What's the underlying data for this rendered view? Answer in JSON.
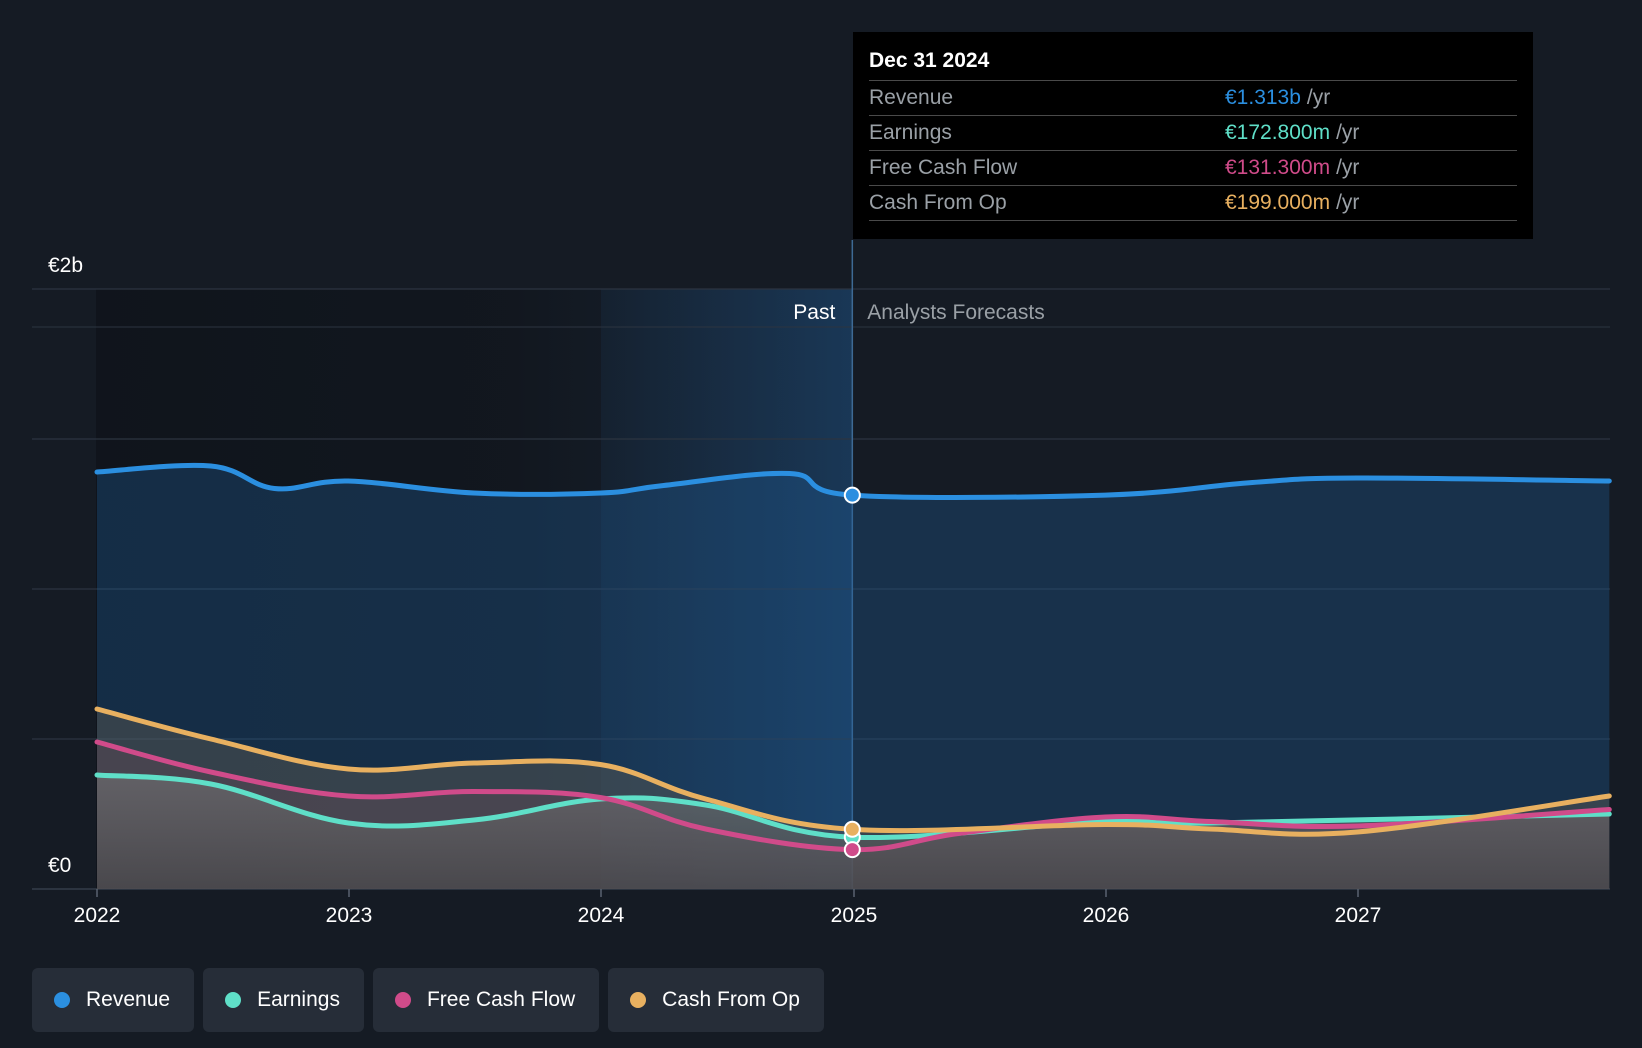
{
  "chart_data": {
    "type": "area",
    "y_tick_labels": [
      "€2b",
      "€0"
    ],
    "ylim": [
      0,
      2000000000
    ],
    "x_tick_labels": [
      "2022",
      "2023",
      "2024",
      "2025",
      "2026",
      "2027"
    ],
    "past_label": "Past",
    "forecast_label": "Analysts Forecasts",
    "divider_date": "2024-12-31",
    "grid": true,
    "series": [
      {
        "name": "Revenue",
        "color": "#2b8fe0",
        "points": [
          [
            "2022-01-01",
            1390000000
          ],
          [
            "2022-06-15",
            1410000000
          ],
          [
            "2022-09-15",
            1335000000
          ],
          [
            "2022-12-31",
            1360000000
          ],
          [
            "2023-07-01",
            1320000000
          ],
          [
            "2024-01-01",
            1320000000
          ],
          [
            "2024-04-01",
            1345000000
          ],
          [
            "2024-10-01",
            1385000000
          ],
          [
            "2024-12-31",
            1313000000
          ],
          [
            "2025-12-31",
            1313000000
          ],
          [
            "2026-08-01",
            1355000000
          ],
          [
            "2026-12-31",
            1370000000
          ],
          [
            "2027-12-31",
            1360000000
          ]
        ]
      },
      {
        "name": "Earnings",
        "color": "#5fdfc8",
        "points": [
          [
            "2022-01-01",
            380000000
          ],
          [
            "2022-06-15",
            350000000
          ],
          [
            "2022-12-31",
            220000000
          ],
          [
            "2023-07-01",
            230000000
          ],
          [
            "2023-12-31",
            300000000
          ],
          [
            "2024-06-01",
            280000000
          ],
          [
            "2024-12-31",
            172800000
          ],
          [
            "2025-12-31",
            225000000
          ],
          [
            "2026-06-01",
            220000000
          ],
          [
            "2027-12-31",
            250000000
          ]
        ]
      },
      {
        "name": "Free Cash Flow",
        "color": "#d04b8a",
        "points": [
          [
            "2022-01-01",
            490000000
          ],
          [
            "2022-06-15",
            390000000
          ],
          [
            "2022-12-31",
            310000000
          ],
          [
            "2023-07-01",
            325000000
          ],
          [
            "2023-12-31",
            305000000
          ],
          [
            "2024-06-01",
            200000000
          ],
          [
            "2024-12-31",
            131300000
          ],
          [
            "2025-06-01",
            185000000
          ],
          [
            "2025-12-31",
            240000000
          ],
          [
            "2026-06-01",
            225000000
          ],
          [
            "2026-12-31",
            210000000
          ],
          [
            "2027-12-31",
            265000000
          ]
        ]
      },
      {
        "name": "Cash From Op",
        "color": "#e8b060",
        "points": [
          [
            "2022-01-01",
            600000000
          ],
          [
            "2022-06-15",
            500000000
          ],
          [
            "2022-12-31",
            400000000
          ],
          [
            "2023-07-01",
            420000000
          ],
          [
            "2023-12-31",
            415000000
          ],
          [
            "2024-06-01",
            300000000
          ],
          [
            "2024-12-31",
            199000000
          ],
          [
            "2025-12-31",
            215000000
          ],
          [
            "2026-06-01",
            200000000
          ],
          [
            "2026-12-31",
            190000000
          ],
          [
            "2027-12-31",
            310000000
          ]
        ]
      }
    ]
  },
  "tooltip": {
    "title": "Dec 31 2024",
    "rows": [
      {
        "label": "Revenue",
        "value": "€1.313b",
        "unit": "/yr",
        "color": "#2b8fe0"
      },
      {
        "label": "Earnings",
        "value": "€172.800m",
        "unit": "/yr",
        "color": "#5fdfc8"
      },
      {
        "label": "Free Cash Flow",
        "value": "€131.300m",
        "unit": "/yr",
        "color": "#d04b8a"
      },
      {
        "label": "Cash From Op",
        "value": "€199.000m",
        "unit": "/yr",
        "color": "#e8b060"
      }
    ]
  },
  "legend": [
    {
      "label": "Revenue",
      "color": "#2b8fe0"
    },
    {
      "label": "Earnings",
      "color": "#5fdfc8"
    },
    {
      "label": "Free Cash Flow",
      "color": "#d04b8a"
    },
    {
      "label": "Cash From Op",
      "color": "#e8b060"
    }
  ]
}
